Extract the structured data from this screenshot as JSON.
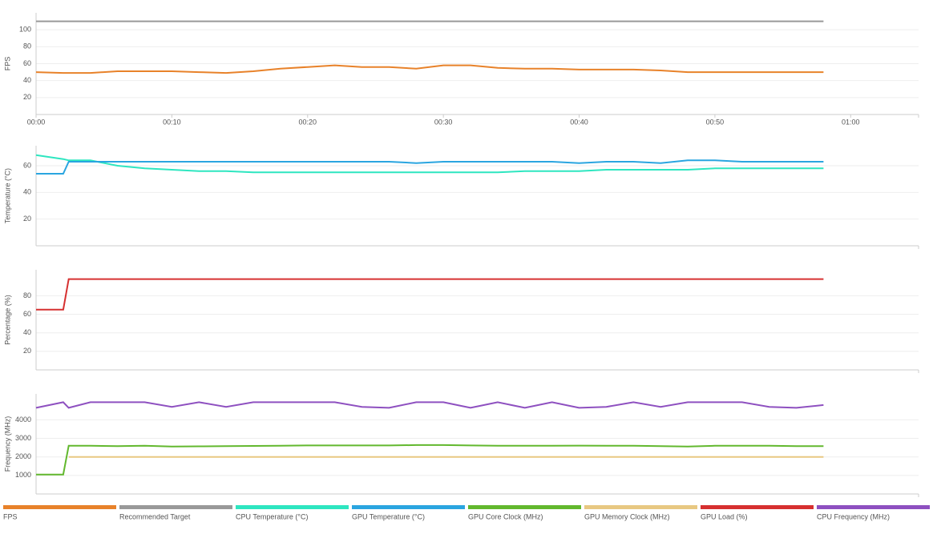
{
  "chart_data": [
    {
      "type": "line",
      "ylabel": "FPS",
      "x": [
        0,
        2,
        2.4,
        4,
        6,
        8,
        10,
        12,
        14,
        16,
        18,
        20,
        22,
        24,
        26,
        28,
        30,
        32,
        34,
        36,
        38,
        40,
        42,
        44,
        46,
        48,
        50,
        52,
        54,
        56,
        58
      ],
      "xlim": [
        0,
        65
      ],
      "xticks": [
        {
          "value": 0,
          "label": "00:00"
        },
        {
          "value": 10,
          "label": "00:10"
        },
        {
          "value": 20,
          "label": "00:20"
        },
        {
          "value": 30,
          "label": "00:30"
        },
        {
          "value": 40,
          "label": "00:40"
        },
        {
          "value": 50,
          "label": "00:50"
        },
        {
          "value": 60,
          "label": "01:00"
        }
      ],
      "ylim": [
        0,
        120
      ],
      "yticks": [
        20,
        40,
        60,
        80,
        100
      ],
      "grid": true,
      "series": [
        {
          "name": "FPS",
          "color": "#e8822a",
          "values": [
            50,
            49,
            49,
            49,
            51,
            51,
            51,
            50,
            49,
            51,
            54,
            56,
            58,
            56,
            56,
            54,
            58,
            58,
            55,
            54,
            54,
            53,
            53,
            53,
            52,
            50,
            50,
            50,
            50,
            50,
            50
          ]
        },
        {
          "name": "Recommended Target",
          "color": "#999999",
          "values": [
            110,
            110,
            110,
            110,
            110,
            110,
            110,
            110,
            110,
            110,
            110,
            110,
            110,
            110,
            110,
            110,
            110,
            110,
            110,
            110,
            110,
            110,
            110,
            110,
            110,
            110,
            110,
            110,
            110,
            110,
            110
          ]
        }
      ]
    },
    {
      "type": "line",
      "ylabel": "Temperature (°C)",
      "x": [
        0,
        2,
        2.4,
        4,
        6,
        8,
        10,
        12,
        14,
        16,
        18,
        20,
        22,
        24,
        26,
        28,
        30,
        32,
        34,
        36,
        38,
        40,
        42,
        44,
        46,
        48,
        50,
        52,
        54,
        56,
        58
      ],
      "xlim": [
        0,
        65
      ],
      "ylim": [
        0,
        75
      ],
      "yticks": [
        20,
        40,
        60
      ],
      "grid": true,
      "series": [
        {
          "name": "CPU Temperature (°C)",
          "color": "#2ee6c0",
          "values": [
            68,
            65,
            64,
            64,
            60,
            58,
            57,
            56,
            56,
            55,
            55,
            55,
            55,
            55,
            55,
            55,
            55,
            55,
            55,
            56,
            56,
            56,
            57,
            57,
            57,
            57,
            58,
            58,
            58,
            58,
            58
          ]
        },
        {
          "name": "GPU Temperature (°C)",
          "color": "#2aa5e0",
          "values": [
            54,
            54,
            63,
            63,
            63,
            63,
            63,
            63,
            63,
            63,
            63,
            63,
            63,
            63,
            63,
            62,
            63,
            63,
            63,
            63,
            63,
            62,
            63,
            63,
            62,
            64,
            64,
            63,
            63,
            63,
            63
          ]
        }
      ]
    },
    {
      "type": "line",
      "ylabel": "Percentage (%)",
      "x": [
        0,
        2,
        2.4,
        4,
        6,
        8,
        10,
        12,
        14,
        16,
        18,
        20,
        22,
        24,
        26,
        28,
        30,
        32,
        34,
        36,
        38,
        40,
        42,
        44,
        46,
        48,
        50,
        52,
        54,
        56,
        58
      ],
      "xlim": [
        0,
        65
      ],
      "ylim": [
        0,
        108
      ],
      "yticks": [
        20,
        40,
        60,
        80
      ],
      "grid": true,
      "series": [
        {
          "name": "GPU Load (%)",
          "color": "#d63030",
          "values": [
            65,
            65,
            98,
            98,
            98,
            98,
            98,
            98,
            98,
            98,
            98,
            98,
            98,
            98,
            98,
            98,
            98,
            98,
            98,
            98,
            98,
            98,
            98,
            98,
            98,
            98,
            98,
            98,
            98,
            98,
            98
          ]
        }
      ]
    },
    {
      "type": "line",
      "ylabel": "Frequency (MHz)",
      "x": [
        0,
        2,
        2.4,
        4,
        6,
        8,
        10,
        12,
        14,
        16,
        18,
        20,
        22,
        24,
        26,
        28,
        30,
        32,
        34,
        36,
        38,
        40,
        42,
        44,
        46,
        48,
        50,
        52,
        54,
        56,
        58
      ],
      "xlim": [
        0,
        65
      ],
      "ylim": [
        0,
        5400
      ],
      "yticks": [
        1000,
        2000,
        3000,
        4000
      ],
      "grid": true,
      "series": [
        {
          "name": "GPU Core Clock (MHz)",
          "color": "#62b82e",
          "values": [
            1050,
            1050,
            2600,
            2600,
            2580,
            2600,
            2560,
            2570,
            2580,
            2590,
            2600,
            2620,
            2620,
            2620,
            2620,
            2640,
            2640,
            2620,
            2600,
            2600,
            2600,
            2610,
            2600,
            2600,
            2580,
            2560,
            2600,
            2600,
            2600,
            2580,
            2580
          ]
        },
        {
          "name": "GPU Memory Clock (MHz)",
          "color": "#e8c882",
          "values": [
            null,
            null,
            2000,
            2000,
            2000,
            2000,
            2000,
            2000,
            2000,
            2000,
            2000,
            2000,
            2000,
            2000,
            2000,
            2000,
            2000,
            2000,
            2000,
            2000,
            2000,
            2000,
            2000,
            2000,
            2000,
            2000,
            2000,
            2000,
            2000,
            2000,
            2000
          ]
        },
        {
          "name": "CPU Frequency (MHz)",
          "color": "#8e50c0",
          "values": [
            4650,
            4950,
            4650,
            4950,
            4950,
            4950,
            4700,
            4950,
            4700,
            4950,
            4950,
            4950,
            4950,
            4700,
            4650,
            4950,
            4950,
            4650,
            4950,
            4650,
            4950,
            4650,
            4700,
            4950,
            4700,
            4950,
            4950,
            4950,
            4700,
            4650,
            4800
          ]
        }
      ]
    }
  ]
}
